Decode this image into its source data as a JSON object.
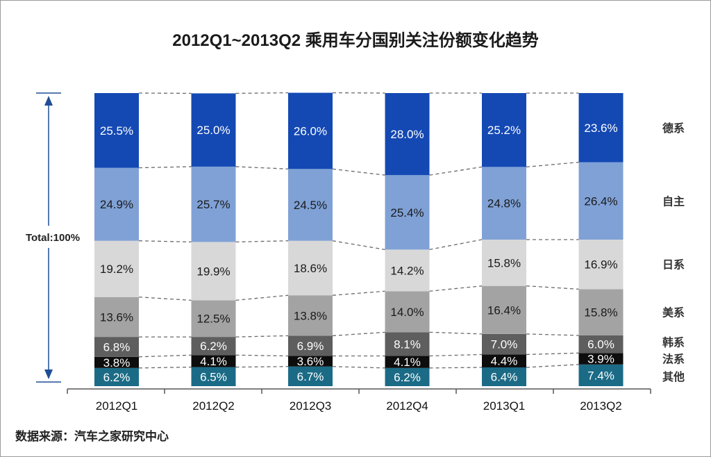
{
  "title": "2012Q1~2013Q2 乘用车分国别关注份额变化趋势",
  "source": "数据来源：汽车之家研究中心",
  "total_label": "Total:100%",
  "chart_data": {
    "type": "bar",
    "stacked": true,
    "normalized": true,
    "title": "2012Q1~2013Q2 乘用车分国别关注份额变化趋势",
    "categories": [
      "2012Q1",
      "2012Q2",
      "2012Q3",
      "2012Q4",
      "2013Q1",
      "2013Q2"
    ],
    "series": [
      {
        "name": "其他",
        "values": [
          6.2,
          6.5,
          6.7,
          6.2,
          6.4,
          7.4
        ],
        "labels": [
          "6.2%",
          "6.5%",
          "6.7%",
          "6.2%",
          "6.4%",
          "7.4%"
        ],
        "color": "#1b6b86",
        "label_color": "#ffffff"
      },
      {
        "name": "法系",
        "values": [
          3.8,
          4.1,
          3.6,
          4.1,
          4.4,
          3.9
        ],
        "labels": [
          "3.8%",
          "4.1%",
          "3.6%",
          "4.1%",
          "4.4%",
          "3.9%"
        ],
        "color": "#0d0d0d",
        "label_color": "#ffffff"
      },
      {
        "name": "韩系",
        "values": [
          6.8,
          6.2,
          6.9,
          8.1,
          7.0,
          6.0
        ],
        "labels": [
          "6.8%",
          "6.2%",
          "6.9%",
          "8.1%",
          "7.0%",
          "6.0%"
        ],
        "color": "#5e5e5e",
        "label_color": "#ffffff"
      },
      {
        "name": "美系",
        "values": [
          13.6,
          12.5,
          13.8,
          14.0,
          16.4,
          15.8
        ],
        "labels": [
          "13.6%",
          "12.5%",
          "13.8%",
          "14.0%",
          "16.4%",
          "15.8%"
        ],
        "color": "#a3a3a3",
        "label_color": "#1a1a1a"
      },
      {
        "name": "日系",
        "values": [
          19.2,
          19.9,
          18.6,
          14.2,
          15.8,
          16.9
        ],
        "labels": [
          "19.2%",
          "19.9%",
          "18.6%",
          "14.2%",
          "15.8%",
          "16.9%"
        ],
        "color": "#d8d8d8",
        "label_color": "#1a1a1a"
      },
      {
        "name": "自主",
        "values": [
          24.9,
          25.7,
          24.5,
          25.4,
          24.8,
          26.4
        ],
        "labels": [
          "24.9%",
          "25.7%",
          "24.5%",
          "25.4%",
          "24.8%",
          "26.4%"
        ],
        "color": "#7fa1d6",
        "label_color": "#1a1a1a"
      },
      {
        "name": "德系",
        "values": [
          25.5,
          25.0,
          26.0,
          28.0,
          25.2,
          23.6
        ],
        "labels": [
          "25.5%",
          "25.0%",
          "26.0%",
          "28.0%",
          "25.2%",
          "23.6%"
        ],
        "color": "#1449b4",
        "label_color": "#ffffff"
      }
    ],
    "legend": "right, aligned with top series segments",
    "connector_lines": "dashed between adjacent bars",
    "grid": false
  }
}
